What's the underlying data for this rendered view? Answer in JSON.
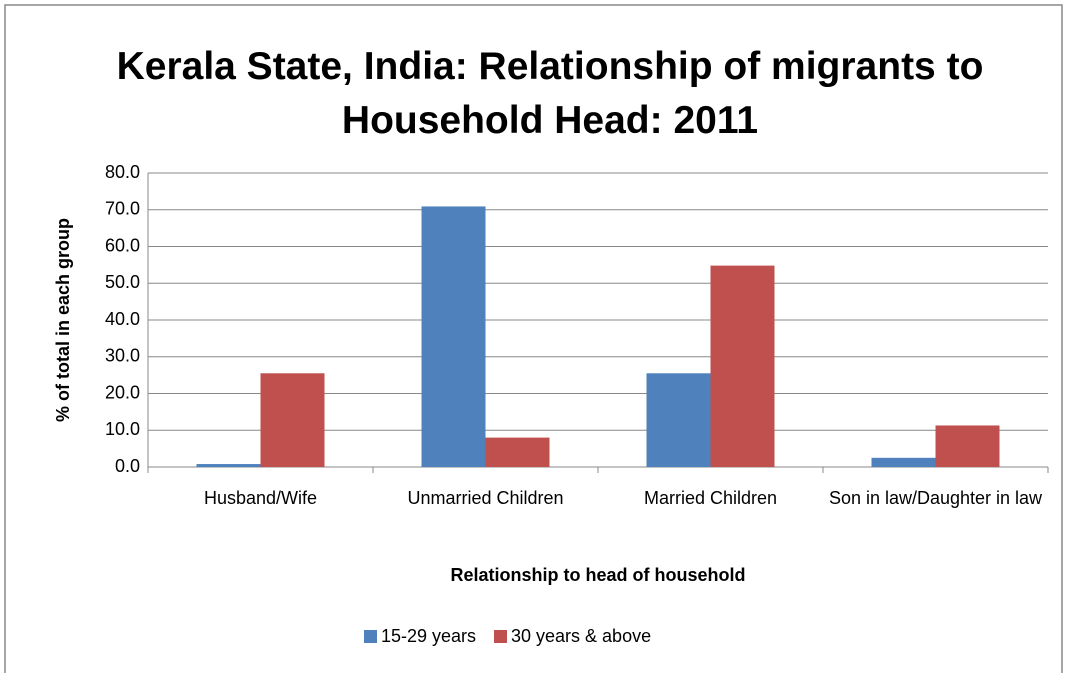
{
  "chart_data": {
    "type": "bar",
    "title": "Kerala State, India: Relationship of migrants to Household Head:  2011",
    "x_label": "Relationship to head of household",
    "y_label": "% of total in each group",
    "categories": [
      "Husband/Wife",
      "Unmarried Children",
      "Married Children",
      "Son in law/Daughter in law"
    ],
    "series": [
      {
        "name": "15-29 years",
        "color": "#4f81bd",
        "values": [
          0.8,
          70.9,
          25.5,
          2.5
        ]
      },
      {
        "name": "30 years & above",
        "color": "#c0504d",
        "values": [
          25.5,
          8.0,
          54.8,
          11.3
        ]
      }
    ],
    "ylim": [
      0,
      80
    ],
    "yticks": [
      {
        "value": 0,
        "label": "0.0"
      },
      {
        "value": 10,
        "label": "10.0"
      },
      {
        "value": 20,
        "label": "20.0"
      },
      {
        "value": 30,
        "label": "30.0"
      },
      {
        "value": 40,
        "label": "40.0"
      },
      {
        "value": 50,
        "label": "50.0"
      },
      {
        "value": 60,
        "label": "60.0"
      },
      {
        "value": 70,
        "label": "70.0"
      },
      {
        "value": 80,
        "label": "80.0"
      }
    ],
    "grid": true,
    "legend": "bottom"
  }
}
